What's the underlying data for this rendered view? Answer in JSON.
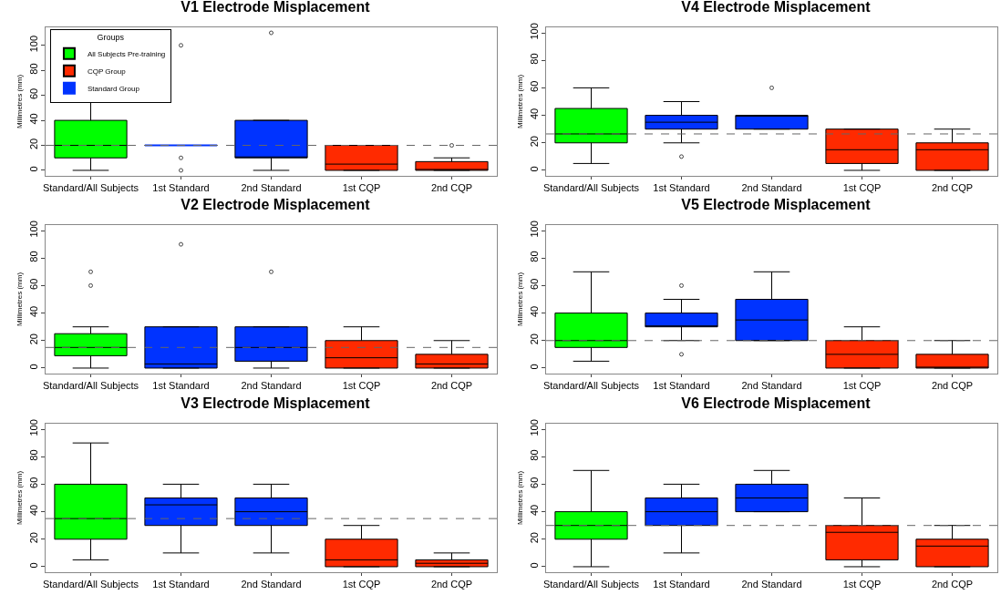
{
  "chart_data": [
    {
      "type": "box",
      "title": "V1 Electrode Misplacement",
      "ylabel": "Millimetres (mm)",
      "categories": [
        "Standard/All Subjects",
        "1st Standard",
        "2nd Standard",
        "1st CQP",
        "2nd CQP"
      ],
      "ylim": [
        -4.4,
        114.4
      ],
      "yticks": [
        0,
        20,
        40,
        60,
        80,
        100
      ],
      "grid": false,
      "legend": "top left",
      "legend_title": "Groups",
      "ref_lines": [
        {
          "axis": "y",
          "value": 20,
          "line_style": "dashed"
        }
      ],
      "series": [
        {
          "name": "All Subjects Pre-training",
          "color": "#00ff00",
          "boxes": [
            {
              "low": 0,
              "q1": 10,
              "median": 20,
              "q3": 40,
              "high": 70
            },
            null,
            null,
            null,
            null
          ]
        },
        {
          "name": "CQP Group",
          "color": "#ff2a00",
          "boxes": [
            null,
            null,
            null,
            {
              "low": 0,
              "q1": 0,
              "median": 5,
              "q3": 20,
              "high": 20
            },
            {
              "low": 0,
              "q1": 0,
              "median": 0,
              "q3": 7,
              "high": 10,
              "outliers": [
                20
              ]
            }
          ]
        },
        {
          "name": "Standard Group",
          "color": "#0033ff",
          "boxes": [
            null,
            {
              "low": 20,
              "q1": 20,
              "median": 20,
              "q3": 20,
              "high": 20,
              "outliers": [
                0,
                10,
                100
              ]
            },
            {
              "low": 0,
              "q1": 10,
              "median": 10,
              "q3": 40,
              "high": 40,
              "outliers": [
                110
              ]
            },
            null,
            null
          ]
        }
      ]
    },
    {
      "type": "box",
      "title": "V4 Electrode Misplacement",
      "ylabel": "Millimetres (mm)",
      "categories": [
        "Standard/All Subjects",
        "1st Standard",
        "2nd Standard",
        "1st CQP",
        "2nd CQP"
      ],
      "ylim": [
        -4,
        104
      ],
      "yticks": [
        0,
        20,
        40,
        60,
        80,
        100
      ],
      "grid": false,
      "ref_lines": [
        {
          "axis": "y",
          "value": 26.5,
          "line_style": "dashed"
        }
      ],
      "series": [
        {
          "color": "#00ff00",
          "boxes": [
            {
              "low": 5,
              "q1": 20,
              "median": 26.5,
              "q3": 45,
              "high": 60
            },
            null,
            null,
            null,
            null
          ]
        },
        {
          "color": "#ff2a00",
          "boxes": [
            null,
            null,
            null,
            {
              "low": 0,
              "q1": 5,
              "median": 15,
              "q3": 30,
              "high": 30
            },
            {
              "low": 0,
              "q1": 0,
              "median": 15,
              "q3": 20,
              "high": 30
            }
          ]
        },
        {
          "color": "#0033ff",
          "boxes": [
            null,
            {
              "low": 20,
              "q1": 30,
              "median": 35,
              "q3": 40,
              "high": 50,
              "outliers": [
                10
              ]
            },
            {
              "low": 30,
              "q1": 30,
              "median": 40,
              "q3": 40,
              "high": 40,
              "outliers": [
                60
              ]
            },
            null,
            null
          ]
        }
      ]
    },
    {
      "type": "box",
      "title": "V2 Electrode Misplacement",
      "ylabel": "Millimetres (mm)",
      "categories": [
        "Standard/All Subjects",
        "1st Standard",
        "2nd Standard",
        "1st CQP",
        "2nd CQP"
      ],
      "ylim": [
        -4,
        104
      ],
      "yticks": [
        0,
        20,
        40,
        60,
        80,
        100
      ],
      "grid": false,
      "ref_lines": [
        {
          "axis": "y",
          "value": 15,
          "line_style": "dashed"
        }
      ],
      "series": [
        {
          "color": "#00ff00",
          "boxes": [
            {
              "low": 0,
              "q1": 9,
              "median": 15,
              "q3": 25,
              "high": 30,
              "outliers": [
                60,
                70
              ]
            },
            null,
            null,
            null,
            null
          ]
        },
        {
          "color": "#ff2a00",
          "boxes": [
            null,
            null,
            null,
            {
              "low": 0,
              "q1": 0,
              "median": 7.5,
              "q3": 20,
              "high": 30
            },
            {
              "low": 0,
              "q1": 0,
              "median": 3,
              "q3": 10,
              "high": 20
            }
          ]
        },
        {
          "color": "#0033ff",
          "boxes": [
            null,
            {
              "low": 0,
              "q1": 0,
              "median": 3,
              "q3": 30,
              "high": 30,
              "outliers": [
                90
              ]
            },
            {
              "low": 0,
              "q1": 5,
              "median": 15,
              "q3": 30,
              "high": 30,
              "outliers": [
                70
              ]
            },
            null,
            null
          ]
        }
      ]
    },
    {
      "type": "box",
      "title": "V5 Electrode Misplacement",
      "ylabel": "Millimetres (mm)",
      "categories": [
        "Standard/All Subjects",
        "1st Standard",
        "2nd Standard",
        "1st CQP",
        "2nd CQP"
      ],
      "ylim": [
        -4,
        104
      ],
      "yticks": [
        0,
        20,
        40,
        60,
        80,
        100
      ],
      "grid": false,
      "ref_lines": [
        {
          "axis": "y",
          "value": 20,
          "line_style": "dashed"
        }
      ],
      "series": [
        {
          "color": "#00ff00",
          "boxes": [
            {
              "low": 5,
              "q1": 15,
              "median": 20,
              "q3": 40,
              "high": 70
            },
            null,
            null,
            null,
            null
          ]
        },
        {
          "color": "#ff2a00",
          "boxes": [
            null,
            null,
            null,
            {
              "low": 0,
              "q1": 0,
              "median": 10,
              "q3": 20,
              "high": 30
            },
            {
              "low": 0,
              "q1": 0,
              "median": 0,
              "q3": 10,
              "high": 20
            }
          ]
        },
        {
          "color": "#0033ff",
          "boxes": [
            null,
            {
              "low": 20,
              "q1": 30,
              "median": 30,
              "q3": 40,
              "high": 50,
              "outliers": [
                10,
                60
              ]
            },
            {
              "low": 20,
              "q1": 20,
              "median": 35,
              "q3": 50,
              "high": 70
            },
            null,
            null
          ]
        }
      ]
    },
    {
      "type": "box",
      "title": "V3 Electrode Misplacement",
      "ylabel": "Millimetres (mm)",
      "categories": [
        "Standard/All Subjects",
        "1st Standard",
        "2nd Standard",
        "1st CQP",
        "2nd CQP"
      ],
      "ylim": [
        -4,
        104
      ],
      "yticks": [
        0,
        20,
        40,
        60,
        80,
        100
      ],
      "grid": false,
      "ref_lines": [
        {
          "axis": "y",
          "value": 35,
          "line_style": "dashed"
        }
      ],
      "series": [
        {
          "color": "#00ff00",
          "boxes": [
            {
              "low": 5,
              "q1": 20,
              "median": 35,
              "q3": 60,
              "high": 90
            },
            null,
            null,
            null,
            null
          ]
        },
        {
          "color": "#ff2a00",
          "boxes": [
            null,
            null,
            null,
            {
              "low": 0,
              "q1": 0,
              "median": 5,
              "q3": 20,
              "high": 30
            },
            {
              "low": 0,
              "q1": 0,
              "median": 2.5,
              "q3": 5,
              "high": 10
            }
          ]
        },
        {
          "color": "#0033ff",
          "boxes": [
            null,
            {
              "low": 10,
              "q1": 30,
              "median": 45,
              "q3": 50,
              "high": 60
            },
            {
              "low": 10,
              "q1": 30,
              "median": 40,
              "q3": 50,
              "high": 60
            },
            null,
            null
          ]
        }
      ]
    },
    {
      "type": "box",
      "title": "V6 Electrode Misplacement",
      "ylabel": "Millimetres (mm)",
      "categories": [
        "Standard/All Subjects",
        "1st Standard",
        "2nd Standard",
        "1st CQP",
        "2nd CQP"
      ],
      "ylim": [
        -4,
        104
      ],
      "yticks": [
        0,
        20,
        40,
        60,
        80,
        100
      ],
      "grid": false,
      "ref_lines": [
        {
          "axis": "y",
          "value": 30,
          "line_style": "dashed"
        }
      ],
      "series": [
        {
          "color": "#00ff00",
          "boxes": [
            {
              "low": 0,
              "q1": 20,
              "median": 30,
              "q3": 40,
              "high": 70
            },
            null,
            null,
            null,
            null
          ]
        },
        {
          "color": "#ff2a00",
          "boxes": [
            null,
            null,
            null,
            {
              "low": 0,
              "q1": 5,
              "median": 25,
              "q3": 30,
              "high": 50
            },
            {
              "low": 0,
              "q1": 0,
              "median": 15,
              "q3": 20,
              "high": 30
            }
          ]
        },
        {
          "color": "#0033ff",
          "boxes": [
            null,
            {
              "low": 10,
              "q1": 30,
              "median": 40,
              "q3": 50,
              "high": 60
            },
            {
              "low": 40,
              "q1": 40,
              "median": 50,
              "q3": 60,
              "high": 70
            },
            null,
            null
          ]
        }
      ]
    }
  ]
}
